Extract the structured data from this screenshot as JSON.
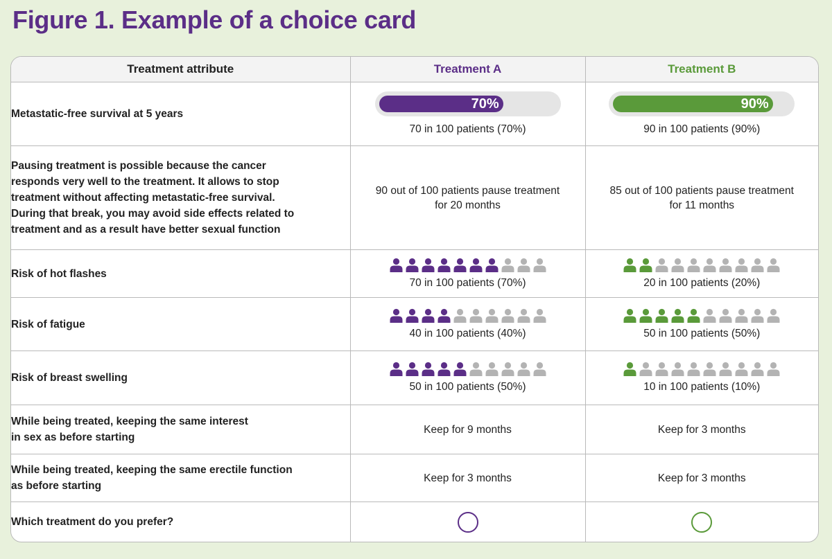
{
  "figure_title": "Figure 1. Example of a choice card",
  "colors": {
    "treatment_a": "#5b2e87",
    "treatment_b": "#5a9a3a",
    "inactive_icon": "#b3b3b3",
    "bar_track": "#e5e5e5",
    "background": "#e8f1dc"
  },
  "header": {
    "attribute": "Treatment attribute",
    "treatment_a": "Treatment A",
    "treatment_b": "Treatment B"
  },
  "rows": [
    {
      "attribute": "Metastatic-free survival at 5 years",
      "a": {
        "bar_percent": 70,
        "bar_label": "70%",
        "text": "70 in 100 patients (70%)"
      },
      "b": {
        "bar_percent": 90,
        "bar_label": "90%",
        "text": "90 in 100 patients (90%)"
      }
    },
    {
      "attribute_lines": [
        "Pausing treatment is possible because the cancer",
        "responds very well to the treatment. It allows to stop",
        "treatment without affecting metastatic-free survival.",
        "During that break, you may avoid side effects related to",
        "treatment and as a result have better sexual function"
      ],
      "a": {
        "lines": [
          "90 out of 100 patients pause treatment",
          "for 20 months"
        ]
      },
      "b": {
        "lines": [
          "85 out of 100 patients pause treatment",
          "for 11 months"
        ]
      }
    },
    {
      "attribute": "Risk of hot flashes",
      "a": {
        "icons_filled": 7,
        "icons_total": 10,
        "text": "70 in 100 patients (70%)"
      },
      "b": {
        "icons_filled": 2,
        "icons_total": 10,
        "text": "20 in 100 patients (20%)"
      }
    },
    {
      "attribute": "Risk of fatigue",
      "a": {
        "icons_filled": 4,
        "icons_total": 10,
        "text": "40 in 100 patients (40%)"
      },
      "b": {
        "icons_filled": 5,
        "icons_total": 10,
        "text": "50 in 100 patients (50%)"
      }
    },
    {
      "attribute": "Risk of breast swelling",
      "a": {
        "icons_filled": 5,
        "icons_total": 10,
        "text": "50 in 100 patients (50%)"
      },
      "b": {
        "icons_filled": 1,
        "icons_total": 10,
        "text": "10 in 100 patients (10%)"
      }
    },
    {
      "attribute_lines": [
        "While being treated, keeping the same interest",
        "in sex as before starting"
      ],
      "a": {
        "text": "Keep for 9 months"
      },
      "b": {
        "text": "Keep for 3 months"
      }
    },
    {
      "attribute_lines": [
        "While being treated, keeping the same erectile function",
        "as before starting"
      ],
      "a": {
        "text": "Keep for 3 months"
      },
      "b": {
        "text": "Keep for 3 months"
      }
    },
    {
      "attribute": "Which treatment do you prefer?",
      "a": {
        "choice": "radio"
      },
      "b": {
        "choice": "radio"
      }
    }
  ]
}
